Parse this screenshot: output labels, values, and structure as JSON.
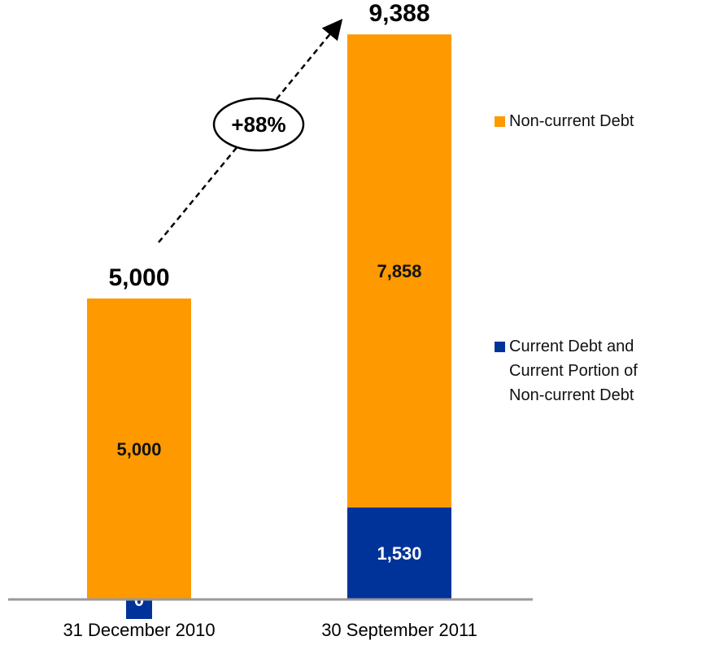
{
  "chart_data": {
    "type": "stacked_bar",
    "categories": [
      "31 December 2010",
      "30 September 2011"
    ],
    "series": [
      {
        "name": "Current Debt and Current Portion of Non-current Debt",
        "color": "#003399",
        "values": [
          0,
          1530
        ],
        "value_labels": [
          "0",
          "1,530"
        ]
      },
      {
        "name": "Non-current Debt",
        "color": "#ff9900",
        "values": [
          5000,
          7858
        ],
        "value_labels": [
          "5,000",
          "7,858"
        ]
      }
    ],
    "totals": [
      5000,
      9388
    ],
    "total_labels": [
      "5,000",
      "9,388"
    ],
    "annotation": "+88%",
    "ylim": [
      0,
      10000
    ],
    "legend": "right"
  }
}
